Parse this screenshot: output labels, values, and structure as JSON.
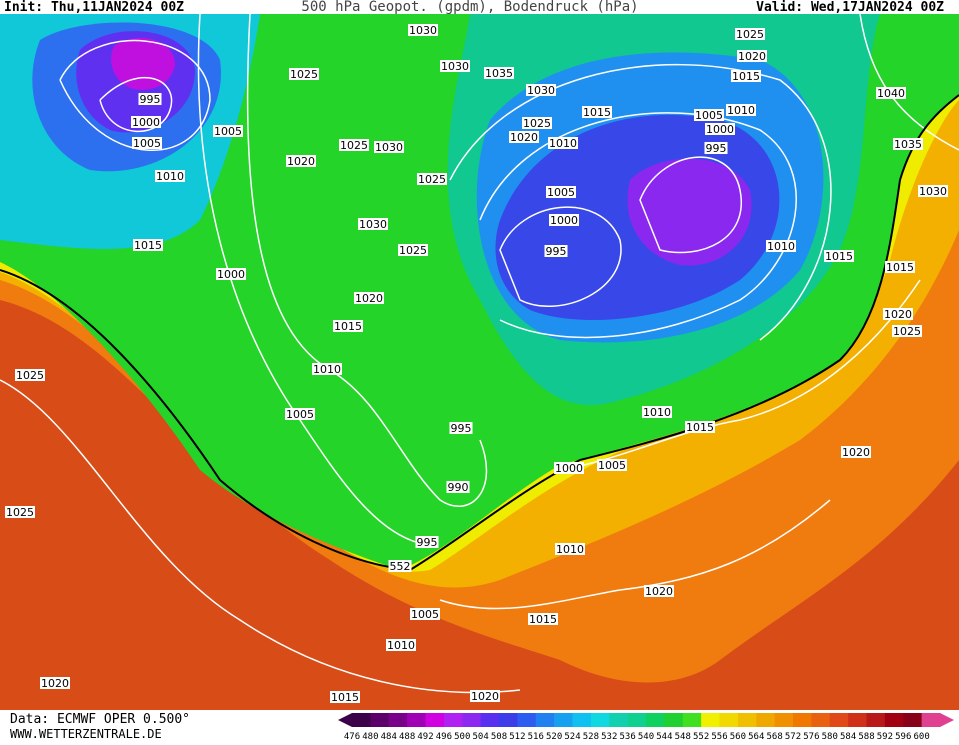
{
  "header": {
    "init": "Init: Thu,11JAN2024 00Z",
    "title": "500 hPa Geopot. (gpdm), Bodendruck (hPa)",
    "valid": "Valid: Wed,17JAN2024 00Z"
  },
  "isobar_labels": [
    "1030",
    "1025",
    "1030",
    "1035",
    "995",
    "1000",
    "1005",
    "1005",
    "1025",
    "1030",
    "1025",
    "1020",
    "1010",
    "1015",
    "1000",
    "1030",
    "1025",
    "1020",
    "1015",
    "1010",
    "1005",
    "995",
    "990",
    "995",
    "1025",
    "1025",
    "1020",
    "1030",
    "1025",
    "1020",
    "1010",
    "1015",
    "1005",
    "1000",
    "995",
    "1025",
    "1020",
    "1015",
    "1010",
    "1005",
    "1000",
    "995",
    "1040",
    "1035",
    "1030",
    "1010",
    "1015",
    "1015",
    "1020",
    "1025",
    "1020",
    "1010",
    "1015",
    "1005",
    "1000",
    "1010",
    "1020",
    "1015",
    "1005",
    "1010",
    "1015",
    "1020",
    "552"
  ],
  "scale": {
    "values": [
      "476",
      "480",
      "484",
      "488",
      "492",
      "496",
      "500",
      "504",
      "508",
      "512",
      "516",
      "520",
      "524",
      "528",
      "532",
      "536",
      "540",
      "544",
      "548",
      "552",
      "556",
      "560",
      "564",
      "568",
      "572",
      "576",
      "580",
      "584",
      "588",
      "592",
      "596",
      "600"
    ],
    "colors": [
      "#3c0048",
      "#5a0068",
      "#7a008a",
      "#a000b4",
      "#d000e0",
      "#b020f0",
      "#8c28f0",
      "#5a30f0",
      "#3c3ce8",
      "#2c5cf0",
      "#2080f0",
      "#18a0f0",
      "#10c0f0",
      "#10d8e0",
      "#10d0b0",
      "#10d090",
      "#10d060",
      "#20d030",
      "#40e020",
      "#f0f000",
      "#f0d800",
      "#f0c000",
      "#f0a800",
      "#f09000",
      "#f07800",
      "#e86010",
      "#e04818",
      "#d03018",
      "#b81818",
      "#a00010",
      "#880018",
      "#e04090"
    ]
  },
  "footer": {
    "data": "Data: ECMWF OPER 0.500°",
    "site": "WWW.WETTERZENTRALE.DE"
  }
}
